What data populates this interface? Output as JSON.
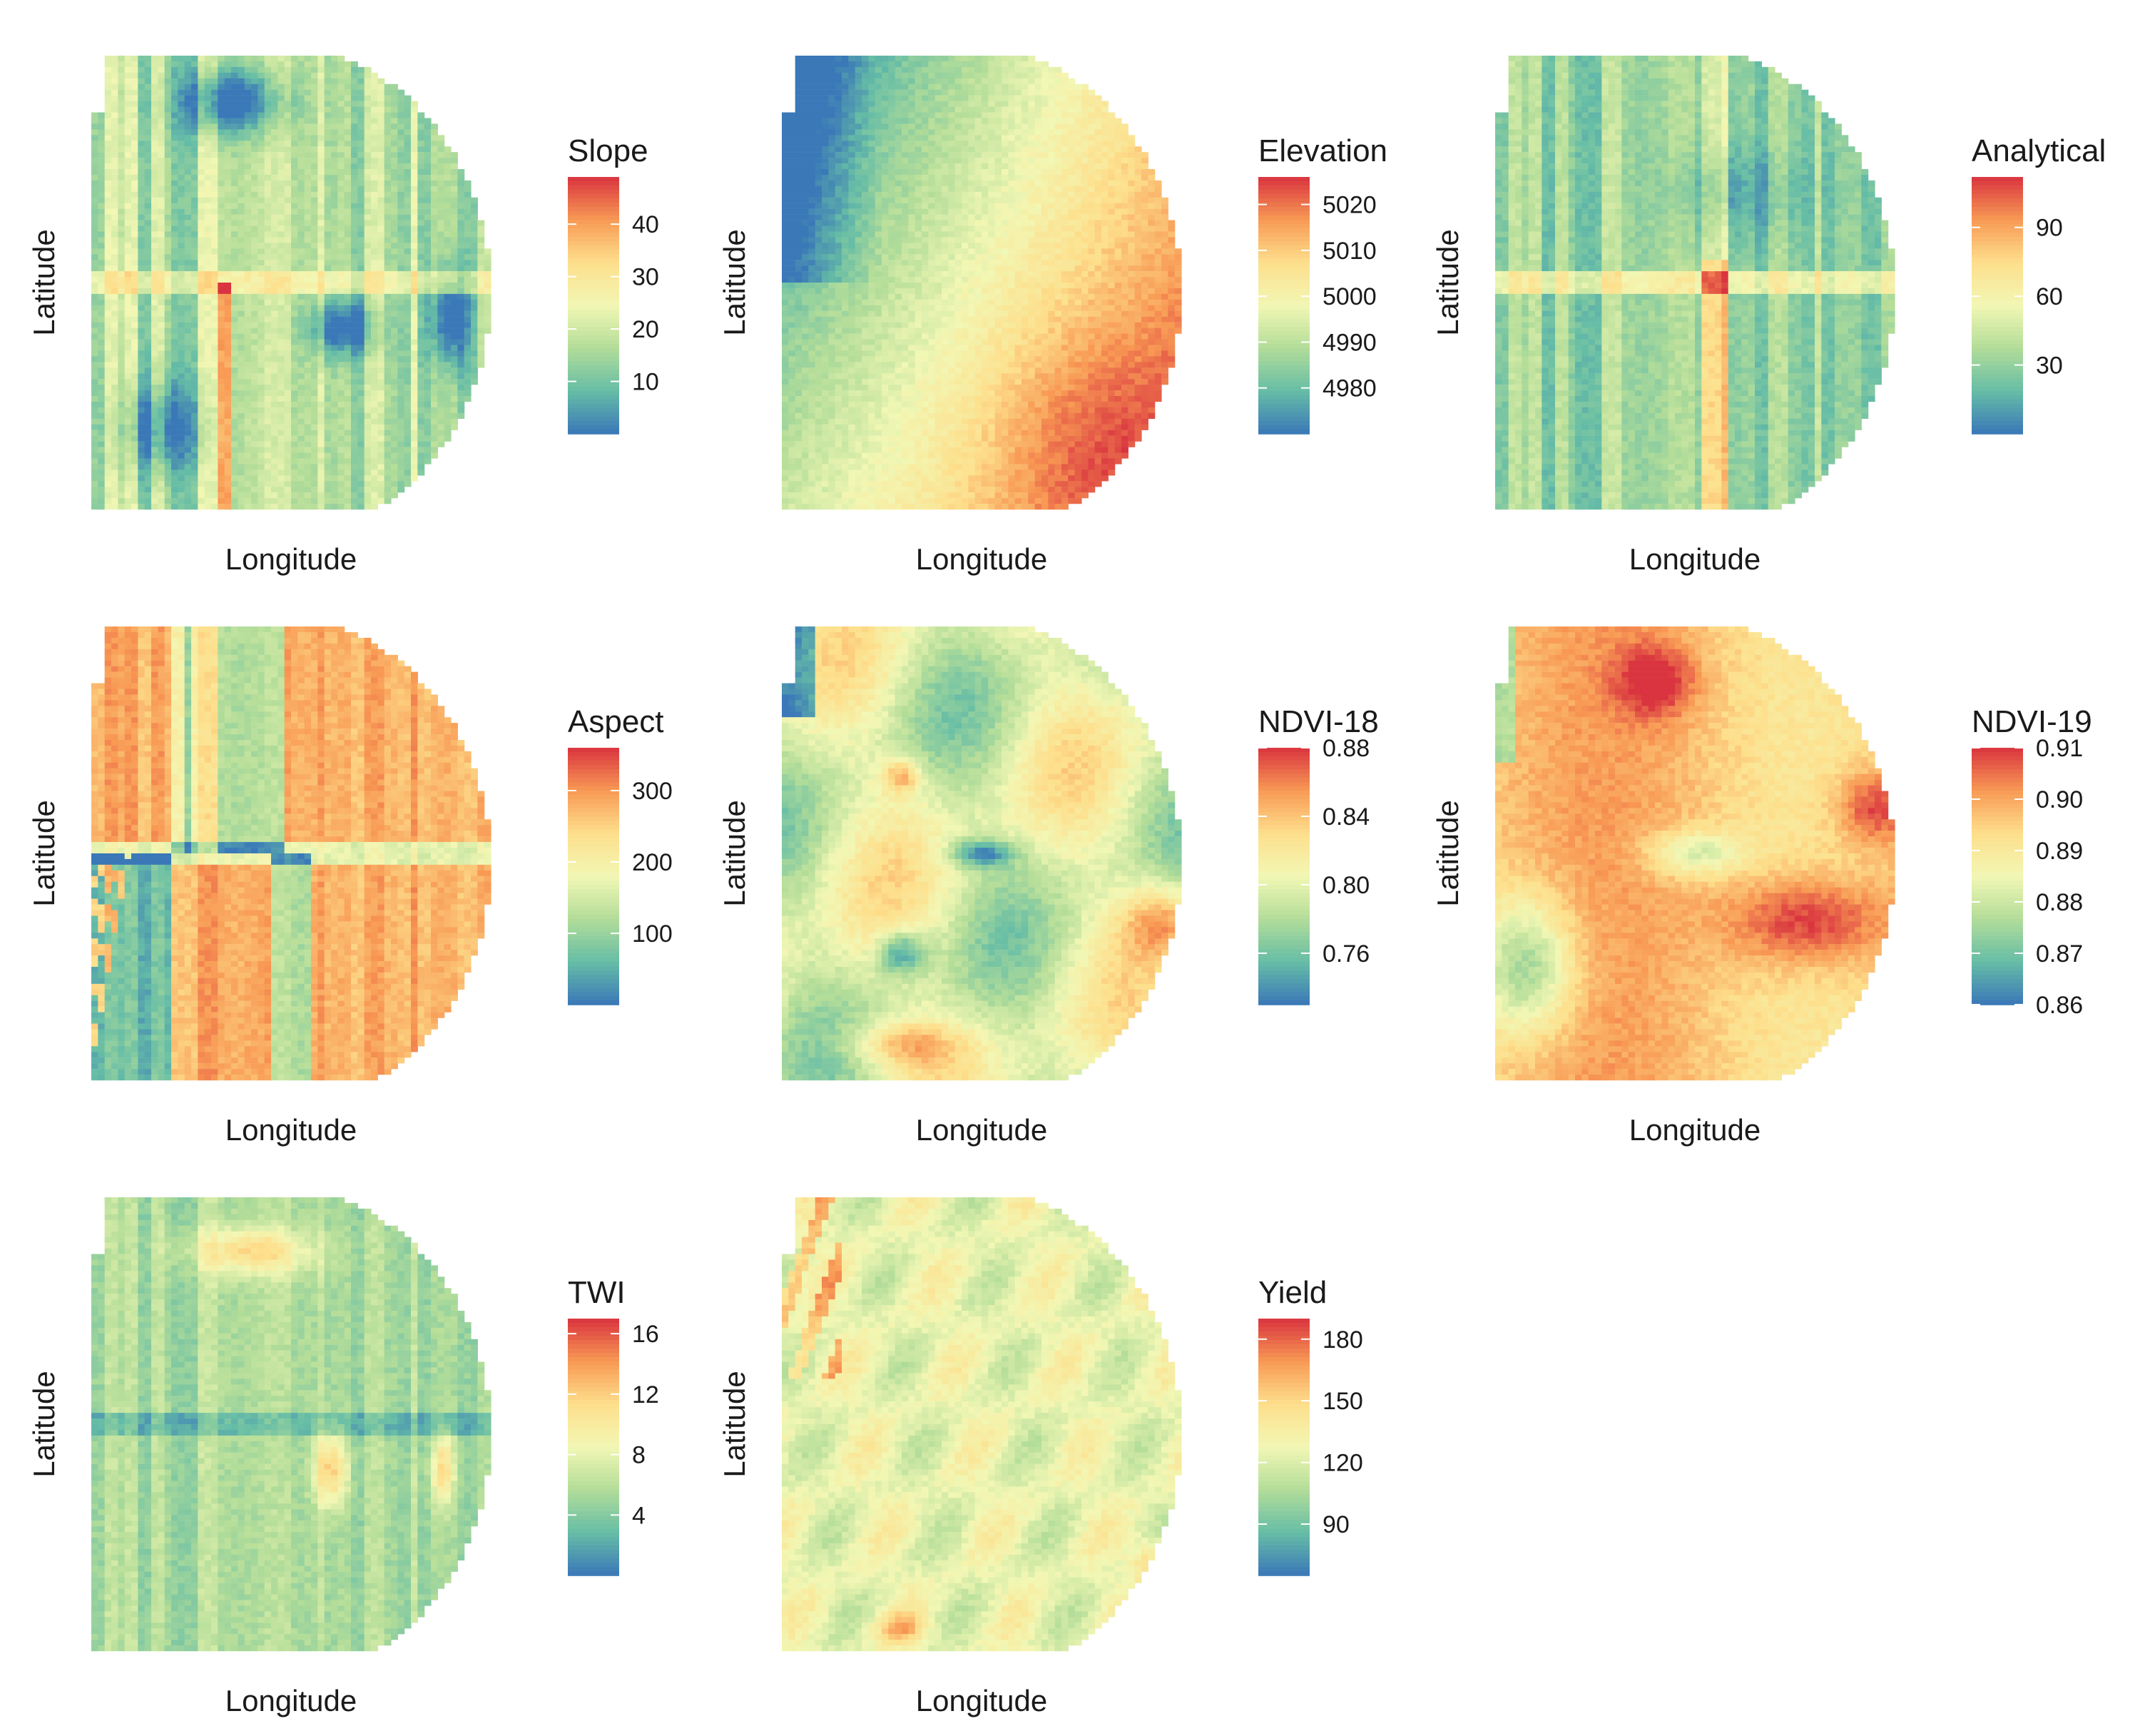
{
  "palette": [
    "#3a78b8",
    "#66bda6",
    "#b3dd99",
    "#f2f7b4",
    "#fddf8c",
    "#f89954",
    "#d9343f"
  ],
  "chart_data": [
    {
      "type": "heatmap",
      "name": "Slope",
      "legend_title": "Slope",
      "xlabel": "Longitude",
      "ylabel": "Latitude",
      "legend_ticks": [
        10,
        20,
        30,
        40
      ],
      "legend_range": [
        0,
        49
      ],
      "field_range": [
        0,
        49
      ],
      "field_mean": 18
    },
    {
      "type": "heatmap",
      "name": "Elevation",
      "legend_title": "Elevation",
      "xlabel": "Longitude",
      "ylabel": "Latitude",
      "legend_ticks": [
        4980,
        4990,
        5000,
        5010,
        5020
      ],
      "legend_range": [
        4970,
        5026
      ],
      "field_range": [
        4970,
        5026
      ],
      "field_mean": 5000
    },
    {
      "type": "heatmap",
      "name": "Analytical",
      "legend_title": "Analytical",
      "xlabel": "Longitude",
      "ylabel": "Latitude",
      "legend_ticks": [
        30,
        60,
        90
      ],
      "legend_range": [
        0,
        112
      ],
      "field_range": [
        0,
        112
      ],
      "field_mean": 35
    },
    {
      "type": "heatmap",
      "name": "Aspect",
      "legend_title": "Aspect",
      "xlabel": "Longitude",
      "ylabel": "Latitude",
      "legend_ticks": [
        100,
        200,
        300
      ],
      "legend_range": [
        0,
        360
      ],
      "field_range": [
        0,
        360
      ],
      "field_mean": 270
    },
    {
      "type": "heatmap",
      "name": "NDVI-18",
      "legend_title": "NDVI-18",
      "xlabel": "Longitude",
      "ylabel": "Latitude",
      "legend_ticks": [
        0.76,
        0.8,
        0.84,
        0.88
      ],
      "legend_tick_labels": [
        "0.76",
        "0.80",
        "0.84",
        "0.88"
      ],
      "legend_range": [
        0.73,
        0.88
      ],
      "field_range": [
        0.73,
        0.88
      ],
      "field_mean": 0.81
    },
    {
      "type": "heatmap",
      "name": "NDVI-19",
      "legend_title": "NDVI-19",
      "xlabel": "Longitude",
      "ylabel": "Latitude",
      "legend_ticks": [
        0.86,
        0.87,
        0.88,
        0.89,
        0.9,
        0.91
      ],
      "legend_tick_labels": [
        "0.86",
        "0.87",
        "0.88",
        "0.89",
        "0.90",
        "0.91"
      ],
      "legend_range": [
        0.86,
        0.91
      ],
      "field_range": [
        0.86,
        0.91
      ],
      "field_mean": 0.893
    },
    {
      "type": "heatmap",
      "name": "TWI",
      "legend_title": "TWI",
      "xlabel": "Longitude",
      "ylabel": "Latitude",
      "legend_ticks": [
        4,
        8,
        12,
        16
      ],
      "legend_range": [
        0,
        17
      ],
      "field_range": [
        0,
        17
      ],
      "field_mean": 6
    },
    {
      "type": "heatmap",
      "name": "Yield",
      "legend_title": "Yield",
      "xlabel": "Longitude",
      "ylabel": "Latitude",
      "legend_ticks": [
        90,
        120,
        150,
        180
      ],
      "legend_range": [
        65,
        190
      ],
      "field_range": [
        65,
        190
      ],
      "field_mean": 125
    }
  ]
}
